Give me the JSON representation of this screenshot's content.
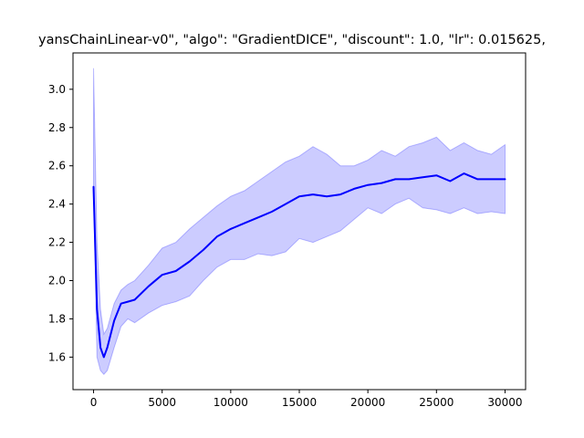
{
  "chart_data": {
    "type": "line",
    "title": "yansChainLinear-v0\", \"algo\": \"GradientDICE\", \"discount\": 1.0, \"lr\": 0.015625,",
    "xlabel": "",
    "ylabel": "",
    "xlim": [
      -1500,
      31500
    ],
    "ylim": [
      1.43,
      3.19
    ],
    "x_ticks": [
      0,
      5000,
      10000,
      15000,
      20000,
      25000,
      30000
    ],
    "y_ticks": [
      1.6,
      1.8,
      2.0,
      2.2,
      2.4,
      2.6,
      2.8,
      3.0
    ],
    "x_tick_labels": [
      "0",
      "5000",
      "10000",
      "15000",
      "20000",
      "25000",
      "30000"
    ],
    "y_tick_labels": [
      "1.6",
      "1.8",
      "2.0",
      "2.2",
      "2.4",
      "2.6",
      "2.8",
      "3.0"
    ],
    "grid": false,
    "colors": {
      "line": "#0000ff",
      "band": "#0000ff"
    },
    "series": [
      {
        "x": [
          0,
          250,
          500,
          750,
          1000,
          1500,
          2000,
          2500,
          3000,
          4000,
          5000,
          6000,
          7000,
          8000,
          9000,
          10000,
          11000,
          12000,
          13000,
          14000,
          15000,
          16000,
          17000,
          18000,
          19000,
          20000,
          21000,
          22000,
          23000,
          24000,
          25000,
          26000,
          27000,
          28000,
          29000,
          30000
        ],
        "y": [
          2.49,
          1.85,
          1.65,
          1.6,
          1.65,
          1.79,
          1.88,
          1.89,
          1.9,
          1.97,
          2.03,
          2.05,
          2.1,
          2.16,
          2.23,
          2.27,
          2.3,
          2.33,
          2.36,
          2.4,
          2.44,
          2.45,
          2.44,
          2.45,
          2.48,
          2.5,
          2.51,
          2.53,
          2.53,
          2.54,
          2.55,
          2.52,
          2.56,
          2.53,
          2.53,
          2.53
        ],
        "upper": [
          3.11,
          2.2,
          1.85,
          1.72,
          1.75,
          1.88,
          1.95,
          1.98,
          2.0,
          2.08,
          2.17,
          2.2,
          2.27,
          2.33,
          2.39,
          2.44,
          2.47,
          2.52,
          2.57,
          2.62,
          2.65,
          2.7,
          2.66,
          2.6,
          2.6,
          2.63,
          2.68,
          2.65,
          2.7,
          2.72,
          2.75,
          2.68,
          2.72,
          2.68,
          2.66,
          2.71
        ],
        "lower": [
          2.49,
          1.6,
          1.53,
          1.51,
          1.53,
          1.65,
          1.76,
          1.8,
          1.78,
          1.83,
          1.87,
          1.89,
          1.92,
          2.0,
          2.07,
          2.11,
          2.11,
          2.14,
          2.13,
          2.15,
          2.22,
          2.2,
          2.23,
          2.26,
          2.32,
          2.38,
          2.35,
          2.4,
          2.43,
          2.38,
          2.37,
          2.35,
          2.38,
          2.35,
          2.36,
          2.35
        ]
      }
    ]
  }
}
